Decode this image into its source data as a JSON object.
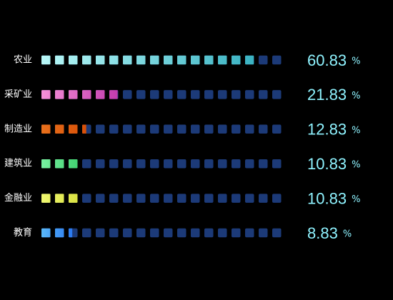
{
  "chart_data": {
    "type": "pictorial-bar",
    "categories": [
      "农业",
      "采矿业",
      "制造业",
      "建筑业",
      "金融业",
      "教育"
    ],
    "values": [
      60.83,
      21.83,
      12.83,
      10.83,
      10.83,
      8.83
    ],
    "unit": "%",
    "xlim": [
      0,
      70
    ],
    "track_color": "#1c3a78",
    "colors": [
      [
        "#b8f8f8",
        "#3ab2c2"
      ],
      [
        "#f590d8",
        "#c23cae"
      ],
      [
        "#e8701c",
        "#d85008"
      ],
      [
        "#78f0a0",
        "#40d070"
      ],
      [
        "#f0f870",
        "#d8e040"
      ],
      [
        "#5ab8f8",
        "#2a78f0"
      ]
    ]
  }
}
